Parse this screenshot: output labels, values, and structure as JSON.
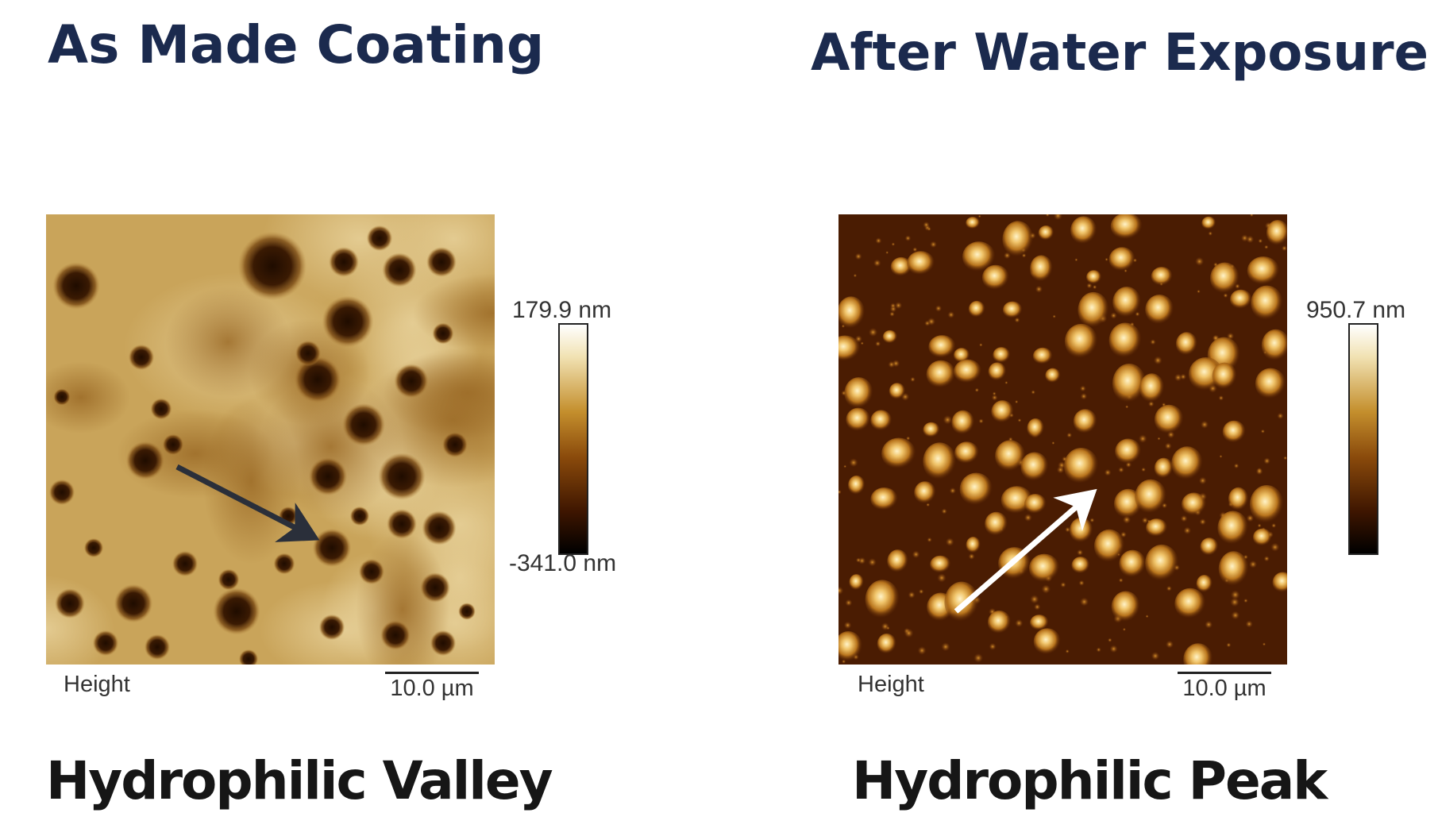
{
  "panels": [
    {
      "id": "as-made",
      "heading": "As Made Coating",
      "colorbar_max": "179.9 nm",
      "colorbar_min": "-341.0 nm",
      "channel": "Height",
      "scale_length": "10.0 µm",
      "caption": "Hydrophilic Valley",
      "image_description": "Tan AFM height map with scattered dark circular pits; dark arrow points to a pit",
      "arrow_color": "#2a2f3a"
    },
    {
      "id": "after-water",
      "heading": "After Water Exposure",
      "colorbar_max": "950.7 nm",
      "channel": "Height",
      "scale_length": "10.0 µm",
      "caption": "Hydrophilic Peak",
      "image_description": "Dark brown AFM height map densely covered with bright rounded peaks; white arrow points to a peak",
      "arrow_color": "#ffffff"
    }
  ],
  "colors": {
    "heading": "#1b2a4e",
    "caption": "#161616",
    "valley_background": "#c9a45a",
    "peak_background": "#4a1c02"
  }
}
